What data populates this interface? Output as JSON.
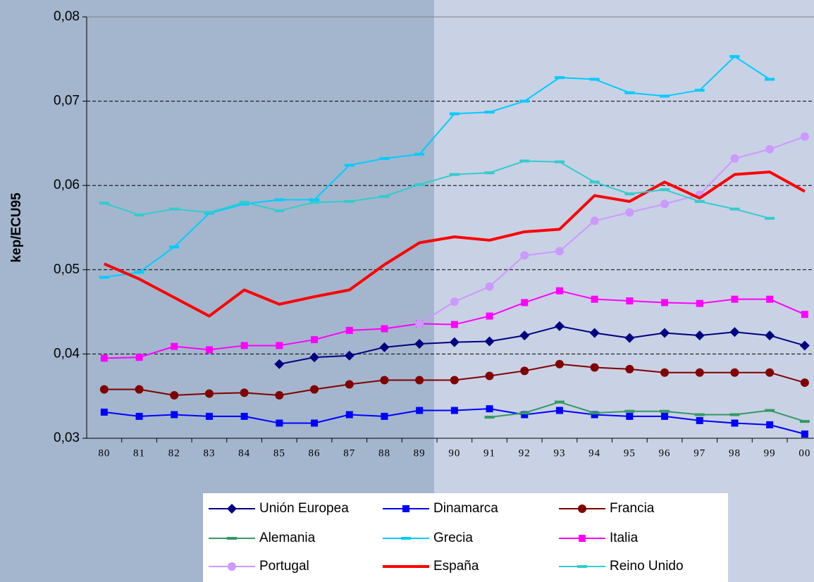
{
  "chart_data": {
    "type": "line",
    "y_label": "kep/ECU95",
    "categories": [
      "80",
      "81",
      "82",
      "83",
      "84",
      "85",
      "86",
      "87",
      "88",
      "89",
      "90",
      "91",
      "92",
      "93",
      "94",
      "95",
      "96",
      "97",
      "98",
      "99",
      "00"
    ],
    "ylim": [
      0.03,
      0.08
    ],
    "yticks": [
      {
        "value": 0.03,
        "label": "0,03"
      },
      {
        "value": 0.04,
        "label": "0,04"
      },
      {
        "value": 0.05,
        "label": "0,05"
      },
      {
        "value": 0.06,
        "label": "0,06"
      },
      {
        "value": 0.07,
        "label": "0,07"
      },
      {
        "value": 0.08,
        "label": "0,08"
      }
    ],
    "grid": true,
    "legend": "bottom",
    "series": [
      {
        "name": "Unión Europea",
        "color": "#000080",
        "marker": "diamond",
        "values": [
          null,
          null,
          null,
          null,
          null,
          0.0388,
          0.0396,
          0.0398,
          0.0408,
          0.0412,
          0.0414,
          0.0415,
          0.0422,
          0.0433,
          0.0425,
          0.0419,
          0.0425,
          0.0422,
          0.0426,
          0.0422,
          0.041
        ]
      },
      {
        "name": "Dinamarca",
        "color": "#0000ff",
        "marker": "square",
        "values": [
          0.0331,
          0.0326,
          0.0328,
          0.0326,
          0.0326,
          0.0318,
          0.0318,
          0.0328,
          0.0326,
          0.0333,
          0.0333,
          0.0335,
          0.0328,
          0.0333,
          0.0328,
          0.0326,
          0.0326,
          0.0321,
          0.0318,
          0.0316,
          0.0305
        ]
      },
      {
        "name": "Francia",
        "color": "#800000",
        "marker": "circle",
        "values": [
          0.0358,
          0.0358,
          0.0351,
          0.0353,
          0.0354,
          0.0351,
          0.0358,
          0.0364,
          0.0369,
          0.0369,
          0.0369,
          0.0374,
          0.038,
          0.0388,
          0.0384,
          0.0382,
          0.0378,
          0.0378,
          0.0378,
          0.0378,
          0.0366
        ]
      },
      {
        "name": "Alemania",
        "color": "#339966",
        "marker": "dash",
        "values": [
          null,
          null,
          null,
          null,
          null,
          null,
          null,
          null,
          null,
          null,
          null,
          0.0325,
          0.033,
          0.0343,
          0.033,
          0.0332,
          0.0332,
          0.0328,
          0.0328,
          0.0333,
          0.032
        ]
      },
      {
        "name": "Grecia",
        "color": "#00ccff",
        "marker": "dash",
        "values": [
          0.0491,
          0.0497,
          0.0527,
          0.0567,
          0.0578,
          0.0583,
          0.0583,
          0.0624,
          0.0632,
          0.0637,
          0.0685,
          0.0687,
          0.07,
          0.0728,
          0.0726,
          0.071,
          0.0706,
          0.0713,
          0.0753,
          0.0726,
          null
        ]
      },
      {
        "name": "Italia",
        "color": "#ff00ff",
        "marker": "square",
        "values": [
          0.0395,
          0.0396,
          0.0409,
          0.0405,
          0.041,
          0.041,
          0.0417,
          0.0428,
          0.043,
          0.0436,
          0.0435,
          0.0445,
          0.0461,
          0.0475,
          0.0465,
          0.0463,
          0.0461,
          0.046,
          0.0465,
          0.0465,
          0.0447
        ]
      },
      {
        "name": "Portugal",
        "color": "#cc99ff",
        "marker": "circle",
        "values": [
          null,
          null,
          null,
          null,
          null,
          null,
          null,
          null,
          null,
          0.0436,
          0.0462,
          0.048,
          0.0517,
          0.0522,
          0.0558,
          0.0568,
          0.0578,
          0.0589,
          0.0632,
          0.0643,
          0.0658
        ]
      },
      {
        "name": "España",
        "color": "#ff0000",
        "marker": "none",
        "values": [
          0.0507,
          0.0489,
          0.0467,
          0.0445,
          0.0476,
          0.0459,
          0.0468,
          0.0476,
          0.0506,
          0.0532,
          0.0539,
          0.0535,
          0.0545,
          0.0548,
          0.0588,
          0.0581,
          0.0604,
          0.0585,
          0.0613,
          0.0616,
          0.0593
        ]
      },
      {
        "name": "Reino Unido",
        "color": "#33cccc",
        "marker": "dash",
        "values": [
          0.0579,
          0.0565,
          0.0572,
          0.0568,
          0.058,
          0.057,
          0.058,
          0.0581,
          0.0587,
          0.0601,
          0.0613,
          0.0615,
          0.0629,
          0.0628,
          0.0604,
          0.059,
          0.0595,
          0.0581,
          0.0572,
          0.0561,
          null
        ]
      }
    ]
  }
}
